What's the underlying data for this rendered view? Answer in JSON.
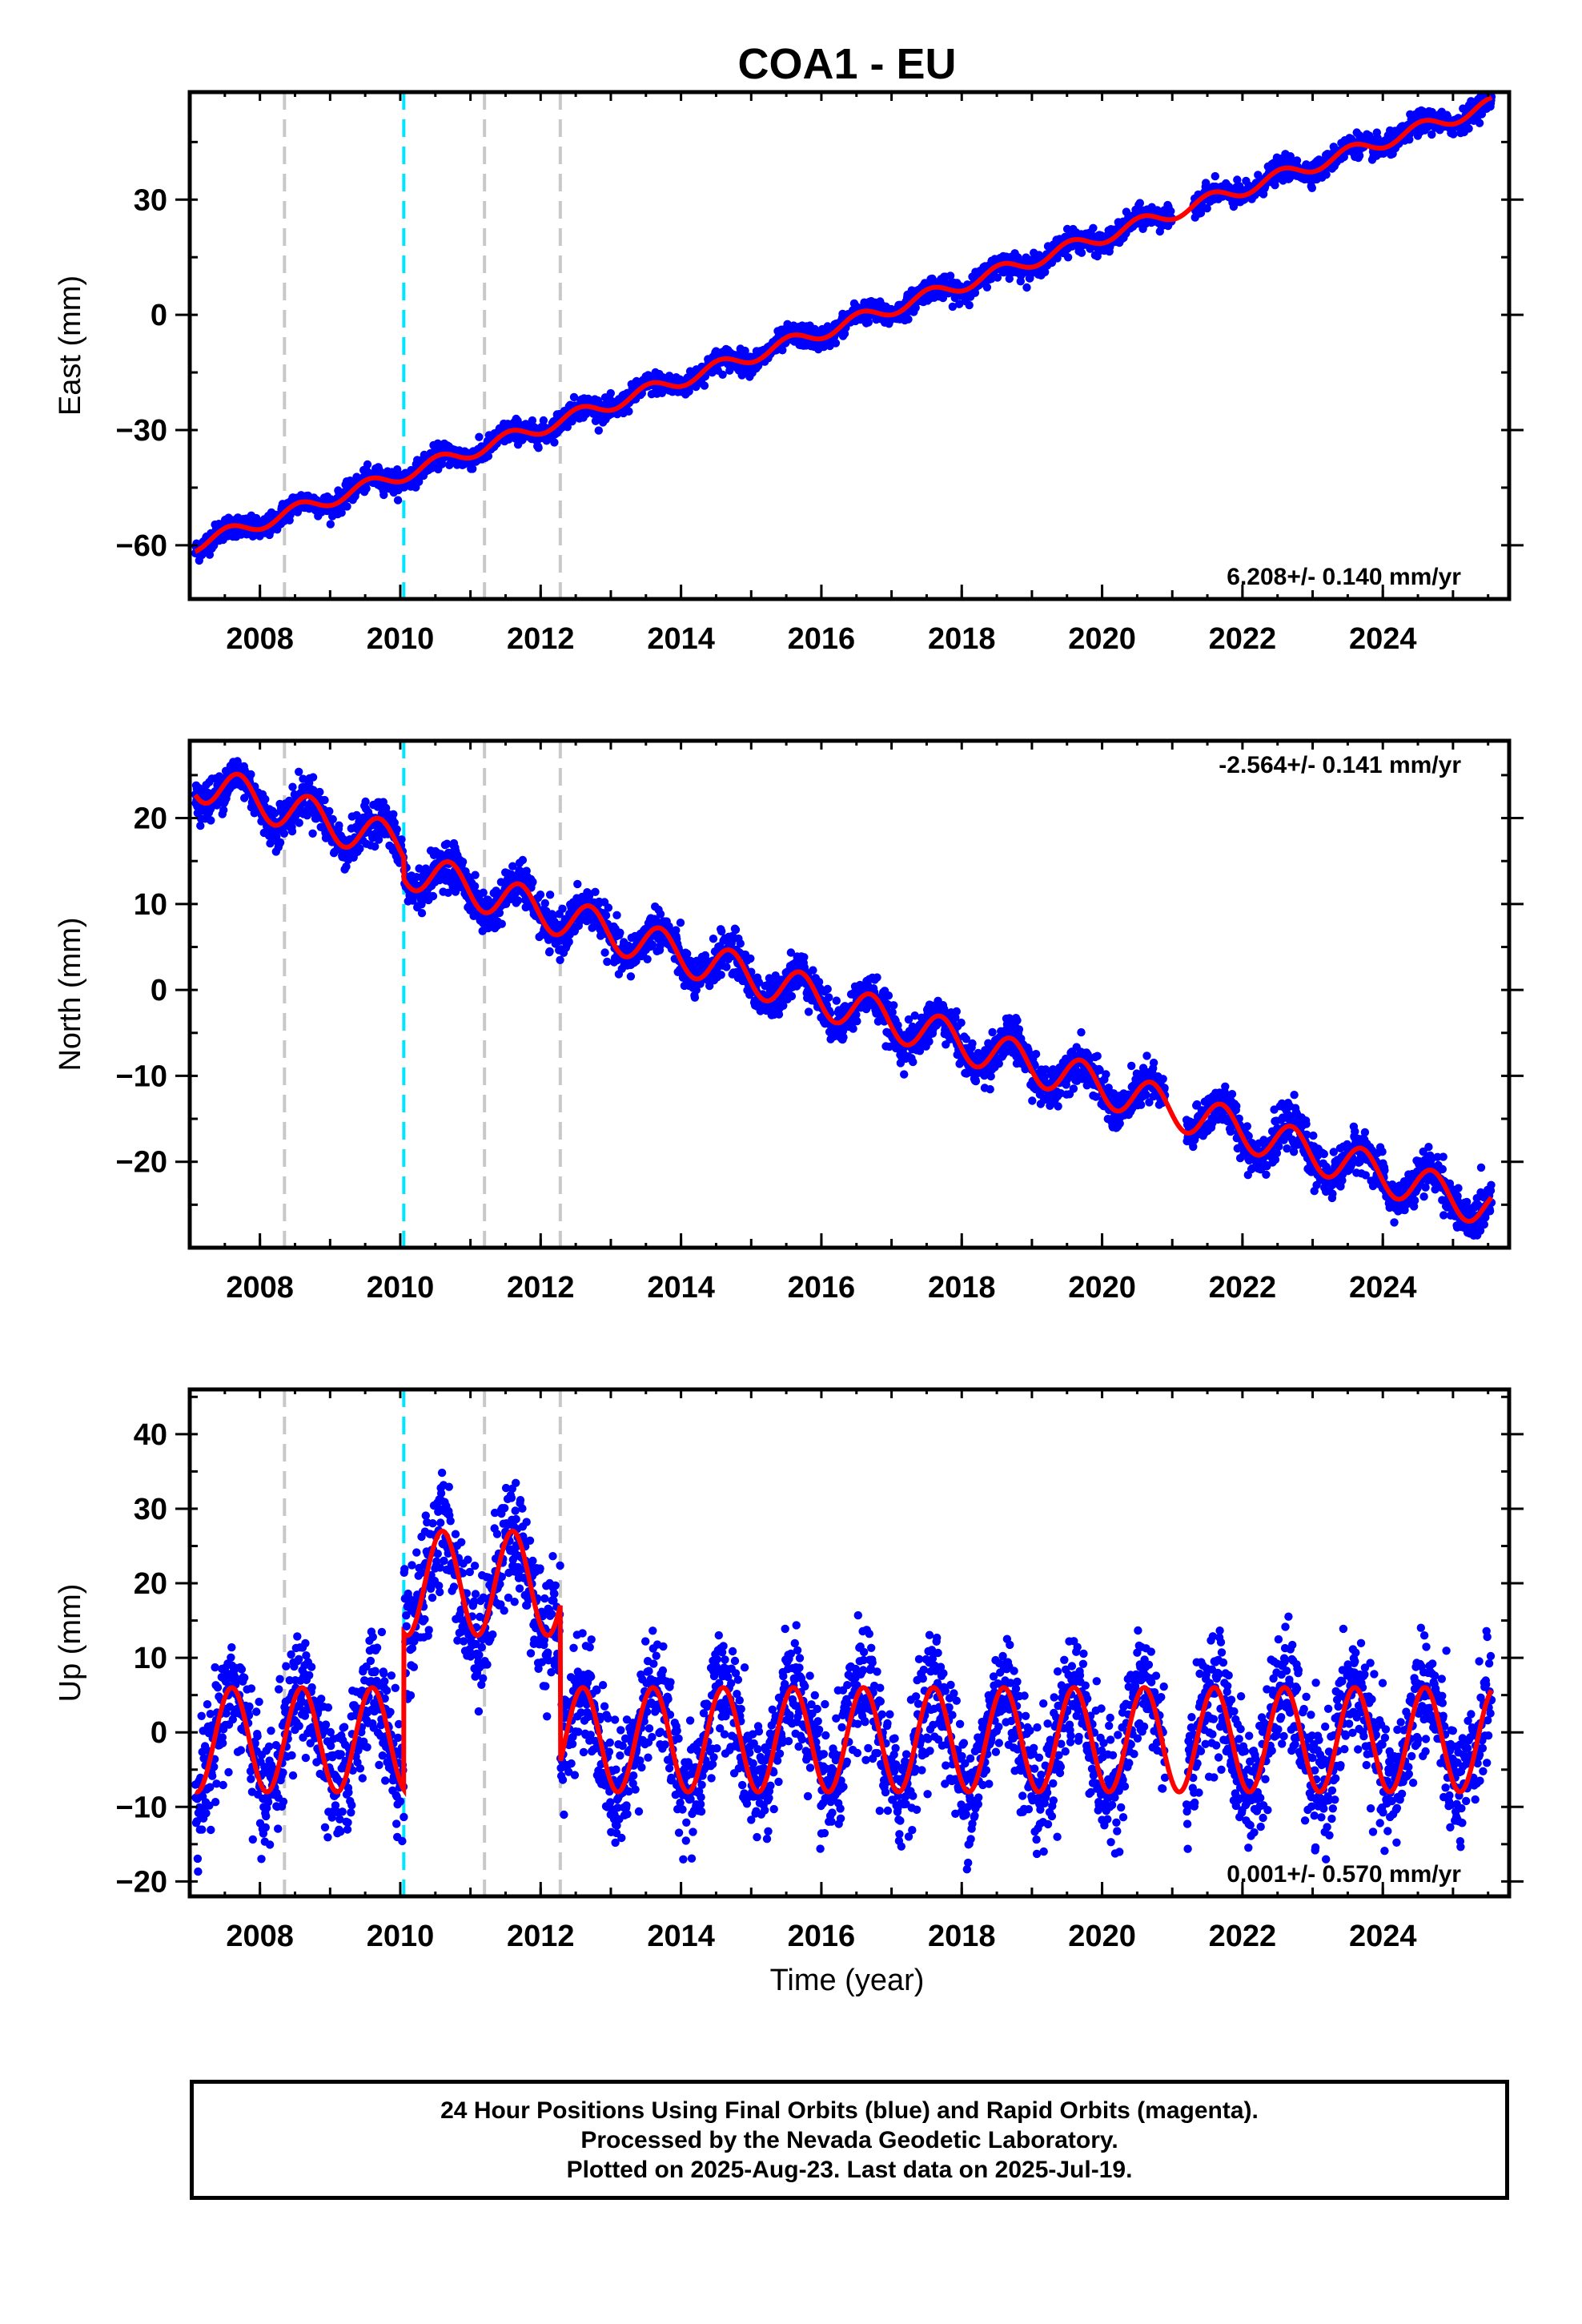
{
  "chart_data": {
    "title": "COA1 - EU",
    "xlabel": "Time (year)",
    "xlim": [
      2007.0,
      2025.8
    ],
    "xticks": [
      "2008",
      "2010",
      "2012",
      "2014",
      "2016",
      "2018",
      "2020",
      "2022",
      "2024"
    ],
    "event_lines": [
      {
        "x": 2008.35,
        "color": "#c8c8c8"
      },
      {
        "x": 2010.05,
        "color": "#00e5ff"
      },
      {
        "x": 2011.2,
        "color": "#c8c8c8"
      },
      {
        "x": 2012.28,
        "color": "#c8c8c8"
      }
    ],
    "series_colors": {
      "final_orbits": "#0000ff",
      "rapid_orbits": "#ff00ff",
      "model_fit": "#ff0000"
    },
    "panels": [
      {
        "type": "scatter",
        "ylabel": "East (mm)",
        "ylim": [
          -74,
          58
        ],
        "yticks": [
          -60,
          -30,
          0,
          30
        ],
        "rate_text": "6.208+/- 0.140 mm/yr",
        "rate_position": "bottom-right",
        "model": {
          "slope": 6.208,
          "ref_year": 2016.0,
          "offset": -4.5,
          "annual_amp": 1.8,
          "annual_phase": 0.3,
          "noise": 1.4,
          "steps": [],
          "data_gaps": [
            [
              2021.0,
              2021.3
            ]
          ]
        }
      },
      {
        "type": "scatter",
        "ylabel": "North (mm)",
        "ylim": [
          -30,
          29
        ],
        "yticks": [
          -20,
          -10,
          0,
          10,
          20
        ],
        "rate_text": "-2.564+/- 0.141 mm/yr",
        "rate_position": "top-right",
        "model": {
          "slope": -2.564,
          "ref_year": 2016.0,
          "offset": 1.5,
          "annual_amp": 2.3,
          "annual_phase": 0.45,
          "noise": 1.2,
          "steps": [
            {
              "x": 2010.05,
              "dy": -2.5
            }
          ],
          "data_gaps": [
            [
              2020.9,
              2021.2
            ]
          ]
        }
      },
      {
        "type": "scatter",
        "ylabel": "Up (mm)",
        "ylim": [
          -22,
          46
        ],
        "yticks": [
          -20,
          -10,
          0,
          10,
          20,
          30,
          40
        ],
        "rate_text": "0.001+/- 0.570 mm/yr",
        "rate_position": "bottom-right",
        "model": {
          "slope": 0.001,
          "ref_year": 2016.0,
          "offset": -1.0,
          "annual_amp": 7.0,
          "annual_phase": 0.35,
          "noise": 4.0,
          "steps": [
            {
              "x": 2010.05,
              "dy": 21.0
            },
            {
              "x": 2012.28,
              "dy": -21.0
            }
          ],
          "data_gaps": [
            [
              2020.9,
              2021.2
            ]
          ]
        }
      }
    ],
    "footer_lines": [
      "24 Hour Positions Using Final Orbits (blue) and Rapid Orbits (magenta).",
      "Processed by the Nevada Geodetic Laboratory.",
      "Plotted on 2025-Aug-23. Last data on 2025-Jul-19."
    ]
  }
}
